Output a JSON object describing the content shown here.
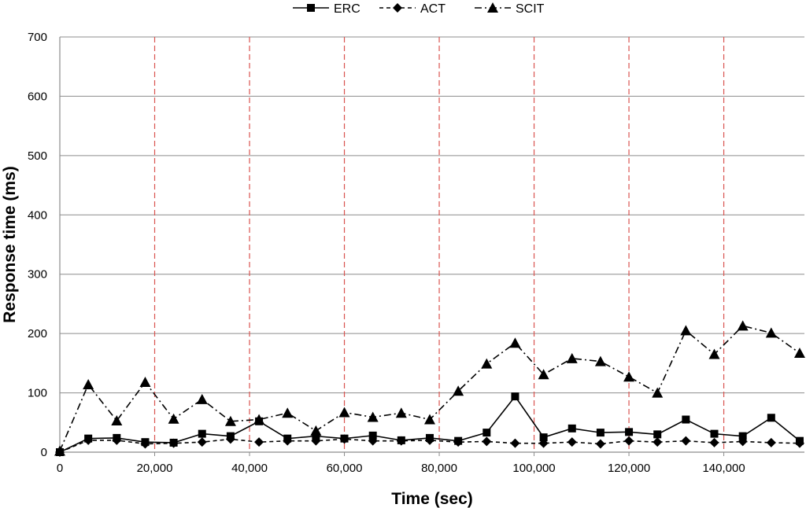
{
  "chart_data": {
    "type": "line",
    "xlabel": "Time (sec)",
    "ylabel": "Response time (ms)",
    "xlim": [
      0,
      157000
    ],
    "ylim": [
      0,
      700
    ],
    "xticks": [
      0,
      20000,
      40000,
      60000,
      80000,
      100000,
      120000,
      140000
    ],
    "xtick_labels": [
      "0",
      "20,000",
      "40,000",
      "60,000",
      "80,000",
      "100,000",
      "120,000",
      "140,000"
    ],
    "yticks": [
      0,
      100,
      200,
      300,
      400,
      500,
      600,
      700
    ],
    "ytick_labels": [
      "0",
      "100",
      "200",
      "300",
      "400",
      "500",
      "600",
      "700"
    ],
    "grid": "horizontal",
    "legend_position": "top-center",
    "vertical_reference_lines": [
      20000,
      40000,
      60000,
      80000,
      100000,
      120000,
      140000
    ],
    "reference_line_color": "#d9534f",
    "x": [
      0,
      6000,
      12000,
      18000,
      24000,
      30000,
      36000,
      42000,
      48000,
      54000,
      60000,
      66000,
      72000,
      78000,
      84000,
      90000,
      96000,
      102000,
      108000,
      114000,
      120000,
      126000,
      132000,
      138000,
      144000,
      150000,
      156000
    ],
    "series": [
      {
        "name": "ERC",
        "line_style": "solid",
        "marker": "square",
        "values": [
          0,
          23,
          24,
          17,
          16,
          31,
          27,
          52,
          23,
          27,
          23,
          28,
          20,
          24,
          19,
          33,
          94,
          25,
          40,
          33,
          34,
          30,
          55,
          31,
          27,
          58,
          19
        ]
      },
      {
        "name": "ACT",
        "line_style": "dashed",
        "marker": "diamond",
        "values": [
          0,
          20,
          20,
          14,
          15,
          17,
          22,
          17,
          19,
          19,
          22,
          19,
          19,
          20,
          17,
          18,
          15,
          15,
          17,
          14,
          19,
          17,
          19,
          16,
          18,
          16,
          15
        ]
      },
      {
        "name": "SCIT",
        "line_style": "dash-dot",
        "marker": "triangle",
        "values": [
          2,
          114,
          53,
          118,
          56,
          89,
          52,
          55,
          66,
          36,
          67,
          59,
          66,
          55,
          103,
          149,
          184,
          131,
          158,
          153,
          127,
          100,
          205,
          165,
          213,
          201,
          167
        ]
      }
    ]
  }
}
